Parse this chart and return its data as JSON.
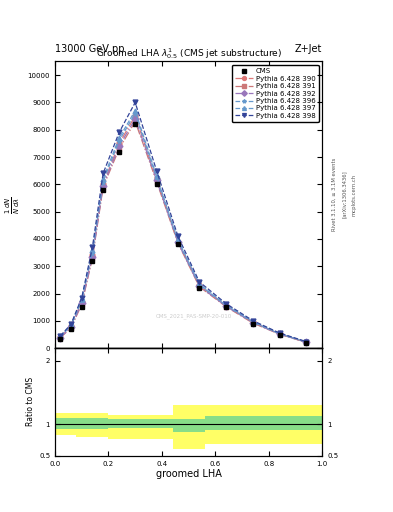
{
  "title_top": "13000 GeV pp",
  "title_right": "Z+Jet",
  "plot_title": "Groomed LHA $\\lambda^{1}_{0.5}$ (CMS jet substructure)",
  "xlabel": "groomed LHA",
  "right_label": "Rivet 3.1.10, ≥ 3.1M events",
  "arxiv_label": "[arXiv:1306.3436]",
  "mcplots_label": "mcplots.cern.ch",
  "cms_watermark": "CMS_2021_PAS-SMP-20-010",
  "x_data": [
    0.02,
    0.06,
    0.1,
    0.14,
    0.18,
    0.24,
    0.3,
    0.38,
    0.46,
    0.54,
    0.64,
    0.74,
    0.84,
    0.94
  ],
  "cms_y": [
    350,
    700,
    1500,
    3200,
    5800,
    7200,
    8200,
    6000,
    3800,
    2200,
    1500,
    900,
    500,
    200
  ],
  "pythia_390": [
    400,
    800,
    1700,
    3400,
    6000,
    7500,
    8500,
    6200,
    3900,
    2300,
    1550,
    950,
    520,
    220
  ],
  "pythia_391": [
    380,
    750,
    1600,
    3300,
    5900,
    7300,
    8300,
    6100,
    3850,
    2250,
    1520,
    920,
    510,
    210
  ],
  "pythia_392": [
    390,
    770,
    1650,
    3350,
    5950,
    7400,
    8400,
    6150,
    3870,
    2270,
    1535,
    935,
    515,
    215
  ],
  "pythia_396": [
    420,
    830,
    1750,
    3500,
    6100,
    7600,
    8600,
    6250,
    3930,
    2320,
    1560,
    960,
    525,
    225
  ],
  "pythia_397": [
    430,
    850,
    1800,
    3600,
    6200,
    7700,
    8700,
    6300,
    3970,
    2350,
    1580,
    975,
    535,
    230
  ],
  "pythia_398": [
    450,
    880,
    1850,
    3700,
    6400,
    7900,
    9000,
    6500,
    4100,
    2430,
    1630,
    1010,
    555,
    240
  ],
  "ylim": [
    0,
    10500
  ],
  "yticks": [
    0,
    1000,
    2000,
    3000,
    4000,
    5000,
    6000,
    7000,
    8000,
    9000,
    10000
  ],
  "ratio_x_edges": [
    0.0,
    0.08,
    0.2,
    0.44,
    0.56,
    1.0
  ],
  "green_upper": [
    1.1,
    1.1,
    1.08,
    1.08,
    1.12,
    1.12
  ],
  "green_lower": [
    0.92,
    0.92,
    0.93,
    0.88,
    0.9,
    0.9
  ],
  "yellow_upper": [
    1.18,
    1.18,
    1.15,
    1.3,
    1.3,
    1.3
  ],
  "yellow_lower": [
    0.82,
    0.8,
    0.77,
    0.6,
    0.68,
    0.68
  ],
  "color_390": "#dd7777",
  "color_391": "#cc7777",
  "color_392": "#9977bb",
  "color_396": "#6699cc",
  "color_397": "#6699cc",
  "color_398": "#334499",
  "legend_entries": [
    "CMS",
    "Pythia 6.428 390",
    "Pythia 6.428 391",
    "Pythia 6.428 392",
    "Pythia 6.428 396",
    "Pythia 6.428 397",
    "Pythia 6.428 398"
  ]
}
